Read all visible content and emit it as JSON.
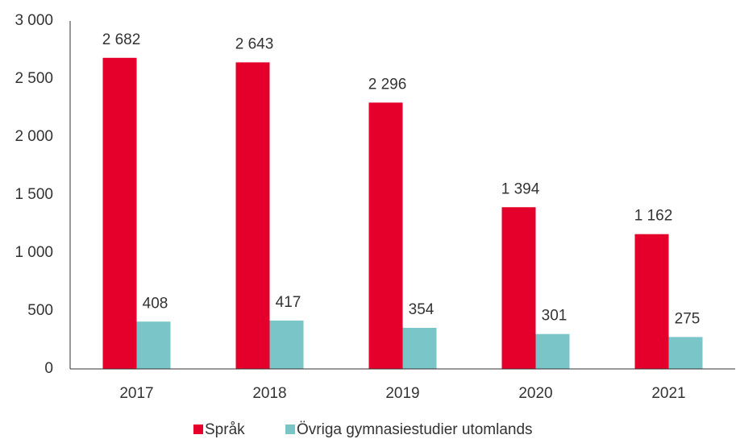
{
  "chart_data": {
    "type": "bar",
    "categories": [
      "2017",
      "2018",
      "2019",
      "2020",
      "2021"
    ],
    "series": [
      {
        "name": "Språk",
        "color": "#e4002b",
        "values": [
          2682,
          2643,
          2296,
          1394,
          1162
        ],
        "value_labels": [
          "2 682",
          "2 643",
          "2 296",
          "1 394",
          "1 162"
        ]
      },
      {
        "name": "Övriga gymnasiestudier utomlands",
        "color": "#7ac5c7",
        "values": [
          408,
          417,
          354,
          301,
          275
        ]
      }
    ],
    "ylim": [
      0,
      3000
    ],
    "yticks": [
      0,
      500,
      {
        "value": 1000,
        "label": "1 000"
      },
      {
        "value": 1500,
        "label": "1 500"
      },
      {
        "value": 2000,
        "label": "2 000"
      },
      {
        "value": 2500,
        "label": "2 500"
      },
      {
        "value": 3000,
        "label": "3 000"
      }
    ],
    "grid": false
  }
}
